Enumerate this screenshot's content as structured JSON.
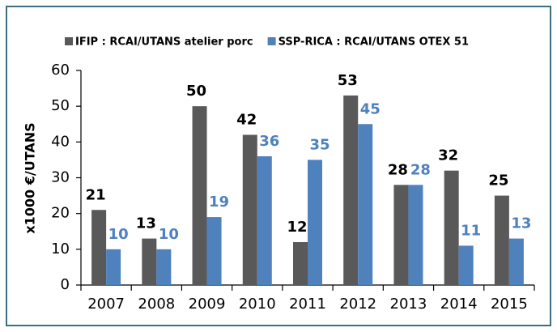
{
  "chart_data": {
    "type": "bar",
    "categories": [
      "2007",
      "2008",
      "2009",
      "2010",
      "2011",
      "2012",
      "2013",
      "2014",
      "2015"
    ],
    "series": [
      {
        "name": "IFIP : RCAI/UTANS atelier porc",
        "color": "#595959",
        "values": [
          21,
          13,
          50,
          42,
          12,
          53,
          28,
          32,
          25
        ]
      },
      {
        "name": "SSP-RICA : RCAI/UTANS OTEX 51",
        "color": "#4f81bd",
        "values": [
          10,
          10,
          19,
          36,
          35,
          45,
          28,
          11,
          13
        ]
      }
    ],
    "y_label": "x1000 €/UTANS",
    "ylim": [
      0,
      60
    ],
    "yticks": [
      0,
      10,
      20,
      30,
      40,
      50,
      60
    ],
    "grid": false,
    "legend": "top"
  }
}
